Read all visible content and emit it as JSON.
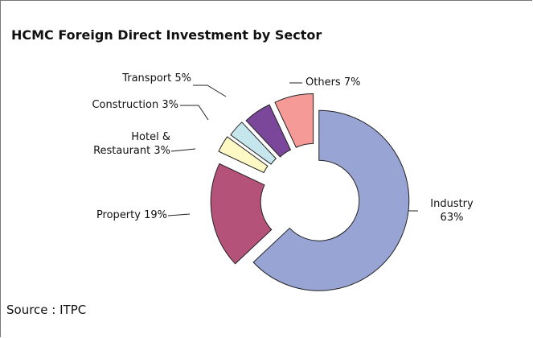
{
  "chart_data": {
    "type": "donut",
    "title": "HCMC Foreign Direct Investment by Sector",
    "categories": [
      "Industry",
      "Property",
      "Hotel & Restaurant",
      "Construction",
      "Transport",
      "Others"
    ],
    "values": [
      63,
      19,
      3,
      3,
      5,
      7
    ],
    "value_labels": [
      "63%",
      "19%",
      "3%",
      "3%",
      "5%",
      "7%"
    ],
    "colors": [
      "#97a4d4",
      "#b5527a",
      "#fdf8c4",
      "#c6e6ed",
      "#7b479b",
      "#f59a96"
    ],
    "source": "Source : ITPC"
  }
}
